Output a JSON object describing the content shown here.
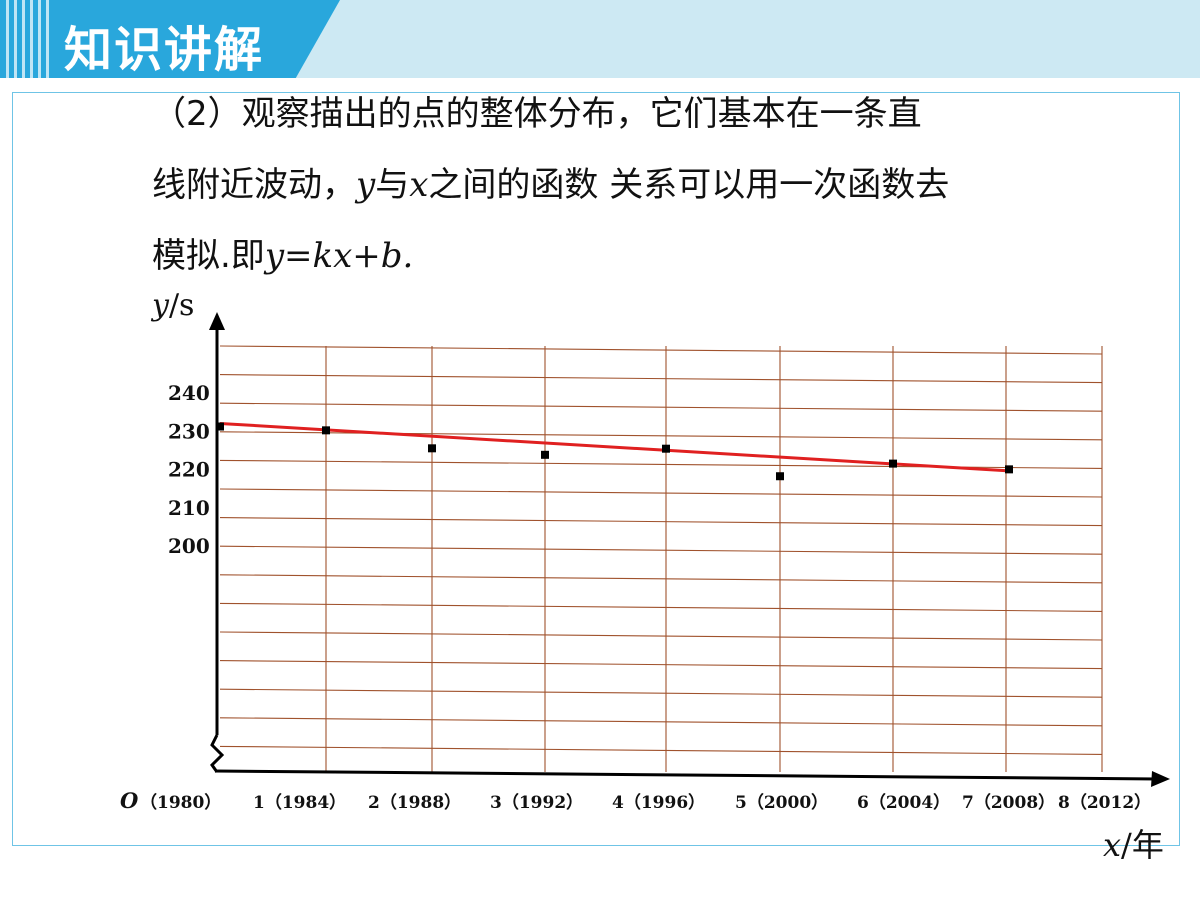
{
  "header": {
    "title": "知识讲解"
  },
  "text": {
    "line1": "（2）观察描出的点的整体分布，它们基本在一条直",
    "line2_a": "线附近波动，",
    "line2_y": "y",
    "line2_b": "与",
    "line2_x": "x",
    "line2_c": "之间的函数 关系可以用一次函数去",
    "line3_a": "模拟.即",
    "line3_eq": "y=kx+b."
  },
  "chart_data": {
    "type": "scatter",
    "ylabel": "y/s",
    "xlabel": "x/年",
    "origin_label": "O",
    "x_ticks": [
      "（1980）",
      "1（1984）",
      "2（1988）",
      "3（1992）",
      "4（1996）",
      "5（2000）",
      "6（2004）",
      "7（2008）",
      "8（2012）"
    ],
    "y_ticks": [
      "240",
      "230",
      "220",
      "210",
      "200"
    ],
    "series": [
      {
        "points": [
          {
            "x": 0,
            "y": 231.5
          },
          {
            "x": 1,
            "y": 230.5
          },
          {
            "x": 2,
            "y": 225.8
          },
          {
            "x": 3,
            "y": 224.1
          },
          {
            "x": 4,
            "y": 225.7
          },
          {
            "x": 5,
            "y": 218.5
          },
          {
            "x": 6,
            "y": 221.8
          },
          {
            "x": 7,
            "y": 220.3
          }
        ]
      }
    ],
    "trend_line": {
      "from": {
        "x": 0,
        "y": 232.3
      },
      "to": {
        "x": 7,
        "y": 219.9
      },
      "color": "#e02020"
    },
    "xlim": [
      0,
      8
    ],
    "ylim": [
      200,
      240
    ],
    "grid": true,
    "grid_color": "#a0522d",
    "axis_break": true
  }
}
